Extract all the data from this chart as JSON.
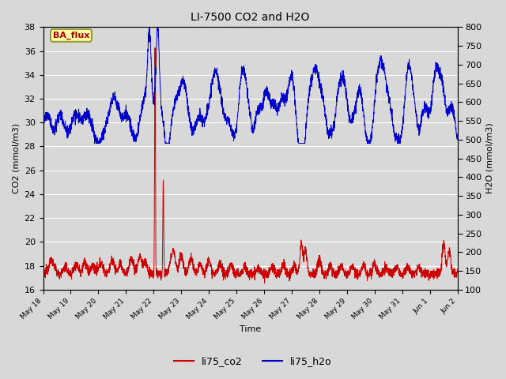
{
  "title": "LI-7500 CO2 and H2O",
  "xlabel": "Time",
  "ylabel_left": "CO2 (mmol/m3)",
  "ylabel_right": "H2O (mmol/m3)",
  "ylim_left": [
    16,
    38
  ],
  "ylim_right": [
    100,
    800
  ],
  "yticks_left": [
    16,
    18,
    20,
    22,
    24,
    26,
    28,
    30,
    32,
    34,
    36,
    38
  ],
  "yticks_right": [
    100,
    150,
    200,
    250,
    300,
    350,
    400,
    450,
    500,
    550,
    600,
    650,
    700,
    750,
    800
  ],
  "background_color": "#d8d8d8",
  "plot_bg_color": "#d8d8d8",
  "grid_color": "#ffffff",
  "co2_color": "#cc0000",
  "h2o_color": "#0000cc",
  "legend_co2": "li75_co2",
  "legend_h2o": "li75_h2o",
  "badge_text": "BA_flux",
  "badge_bg": "#ffffaa",
  "badge_border": "#999933",
  "badge_text_color": "#aa0000",
  "x_tick_labels": [
    "May 18",
    "May 19",
    "May 20",
    "May 21",
    "May 22",
    "May 23",
    "May 24",
    "May 25",
    "May 26",
    "May 27",
    "May 28",
    "May 29",
    "May 30",
    "May 31",
    "Jun 1",
    "Jun 2"
  ],
  "n_days": 15
}
